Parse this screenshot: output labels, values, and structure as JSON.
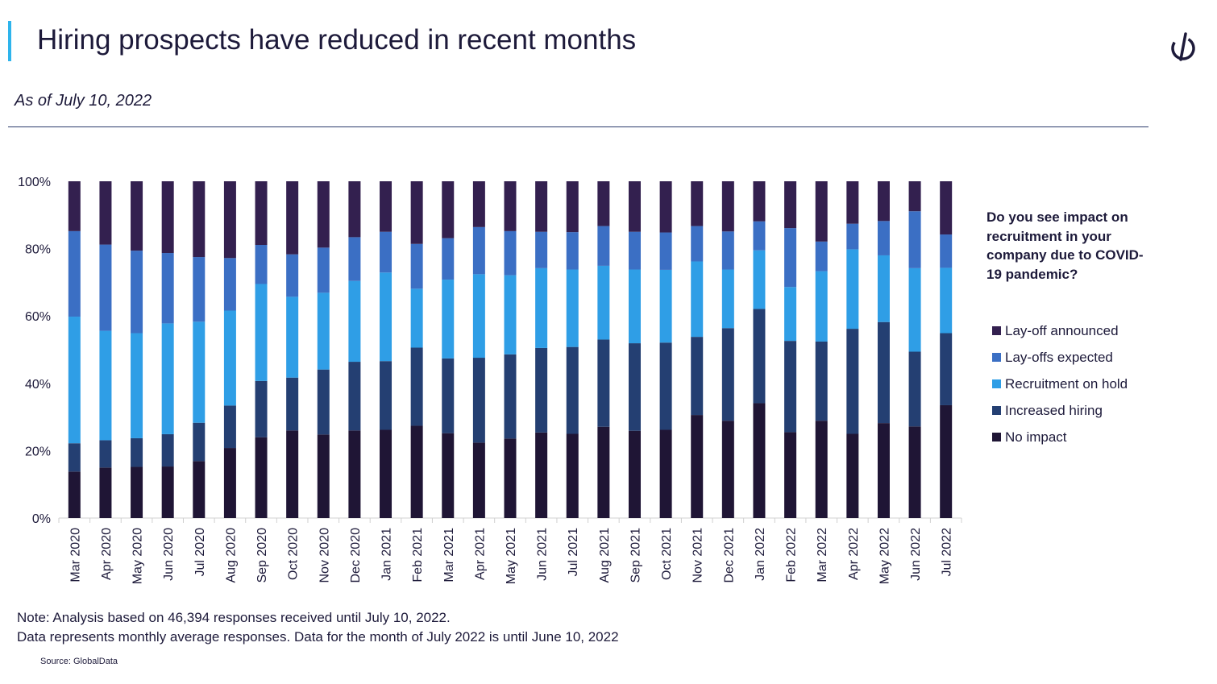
{
  "header": {
    "title": "Hiring prospects have reduced in recent months",
    "subtitle": "As of July 10, 2022",
    "accent_color": "#2eb4ec",
    "logo_icon": "globaldata-logo-icon"
  },
  "legend": {
    "title": "Do you see impact on recruitment in your company due to COVID-19 pandemic?",
    "items": [
      {
        "label": "Lay-off announced",
        "color": "#33204f"
      },
      {
        "label": "Lay-offs expected",
        "color": "#3b6fc4"
      },
      {
        "label": "Recruitment on hold",
        "color": "#2f9ee6"
      },
      {
        "label": "Increased hiring",
        "color": "#243f72"
      },
      {
        "label": "No impact",
        "color": "#1f1535"
      }
    ]
  },
  "footer": {
    "note_line1": "Note: Analysis based on 46,394 responses received until July 10, 2022.",
    "note_line2": "Data represents monthly average responses. Data for the month of July 2022 is until June 10, 2022",
    "source": "Source: GlobalData"
  },
  "chart_data": {
    "type": "bar",
    "stacked": true,
    "normalized": true,
    "categories": [
      "Mar 2020",
      "Apr 2020",
      "May 2020",
      "Jun 2020",
      "Jul 2020",
      "Aug 2020",
      "Sep 2020",
      "Oct 2020",
      "Nov 2020",
      "Dec 2020",
      "Jan 2021",
      "Feb 2021",
      "Mar 2021",
      "Apr 2021",
      "May 2021",
      "Jun 2021",
      "Jul 2021",
      "Aug 2021",
      "Sep 2021",
      "Oct 2021",
      "Nov 2021",
      "Dec 2021",
      "Jan 2022",
      "Feb 2022",
      "Mar 2022",
      "Apr 2022",
      "May 2022",
      "Jun 2022",
      "Jul 2022"
    ],
    "series": [
      {
        "name": "No impact",
        "color": "#1f1535",
        "values": [
          13.8,
          15,
          15.2,
          15.3,
          16.9,
          20.8,
          24,
          26,
          24.8,
          26,
          26.2,
          27.4,
          25.2,
          22.4,
          23.6,
          25.4,
          25,
          27.1,
          25.9,
          26.2,
          30.6,
          28.9,
          34.1,
          25.5,
          28.9,
          25,
          28.2,
          27.2,
          33.5
        ]
      },
      {
        "name": "Increased hiring",
        "color": "#243f72",
        "values": [
          8.4,
          8.1,
          8.5,
          9.6,
          11.4,
          12.6,
          16.7,
          15.7,
          19.3,
          20.4,
          20.4,
          23.2,
          22.2,
          25.2,
          25,
          25.1,
          25.8,
          25.9,
          26,
          25.9,
          23.2,
          27.5,
          28,
          27.1,
          23.5,
          31.2,
          30,
          22.2,
          21.4
        ]
      },
      {
        "name": "Recruitment on hold",
        "color": "#2f9ee6",
        "values": [
          37.6,
          32.5,
          31.2,
          32.9,
          30,
          28.2,
          28.8,
          24,
          22.8,
          24,
          26.3,
          17.5,
          23.4,
          24.8,
          23.5,
          23.7,
          23,
          21.9,
          21.9,
          21.6,
          22.4,
          17.4,
          17.4,
          16,
          20.9,
          23.6,
          19.8,
          24.8,
          19.4
        ]
      },
      {
        "name": "Lay-offs expected",
        "color": "#3b6fc4",
        "values": [
          25.4,
          25.6,
          24.5,
          20.9,
          19.2,
          15.6,
          11.6,
          12.6,
          13.4,
          13,
          12.1,
          13.3,
          12.3,
          14,
          13.1,
          10.8,
          11.1,
          11.8,
          11.2,
          11.1,
          10.5,
          11.3,
          8.6,
          17.5,
          8.8,
          7.6,
          10.2,
          16.9,
          9.9
        ]
      },
      {
        "name": "Lay-off announced",
        "color": "#33204f",
        "values": [
          14.8,
          18.8,
          20.6,
          21.3,
          22.5,
          22.8,
          18.9,
          21.7,
          19.7,
          16.6,
          15,
          18.6,
          16.9,
          13.6,
          14.8,
          15,
          15.1,
          13.3,
          15,
          15.2,
          13.3,
          14.9,
          11.9,
          13.9,
          17.9,
          12.6,
          11.8,
          8.9,
          15.8
        ]
      }
    ],
    "y_ticks": [
      "0%",
      "20%",
      "40%",
      "60%",
      "80%",
      "100%"
    ],
    "ylim": [
      0,
      100
    ],
    "xlabel": "",
    "ylabel": "",
    "grid": false,
    "legend_position": "right"
  }
}
